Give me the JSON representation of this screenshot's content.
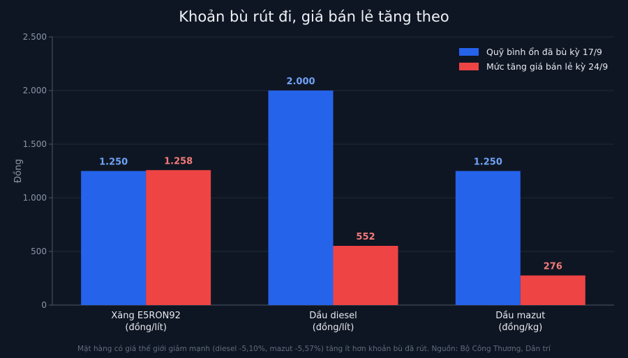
{
  "chart_data": {
    "type": "bar",
    "title": "Khoản bù rút đi, giá bán lẻ tăng theo",
    "ylabel": "Đồng",
    "xlabel": "",
    "ylim": [
      0,
      2500
    ],
    "yticks": [
      0,
      500,
      1000,
      1500,
      2000,
      2500
    ],
    "ytick_labels": [
      "0",
      "500",
      "1.000",
      "1.500",
      "2.000",
      "2.500"
    ],
    "categories": [
      [
        "Xăng E5RON92",
        "(đồng/lít)"
      ],
      [
        "Dầu diesel",
        "(đồng/lít)"
      ],
      [
        "Dầu mazut",
        "(đồng/kg)"
      ]
    ],
    "series": [
      {
        "name": "Quỹ bình ổn đã bù kỳ 17/9",
        "color": "#2563eb",
        "label_color": "#6fa3f7",
        "values": [
          1250,
          2000,
          1250
        ],
        "labels": [
          "1.250",
          "2.000",
          "1.250"
        ]
      },
      {
        "name": "Mức tăng giá bán lẻ kỳ 24/9",
        "color": "#ef4444",
        "label_color": "#f47a7a",
        "values": [
          1258,
          552,
          276
        ],
        "labels": [
          "1.258",
          "552",
          "276"
        ]
      }
    ],
    "grid": true,
    "legend_position": "top-right",
    "source_note": "Mặt hàng có giá thế giới giảm mạnh (diesel -5,10%, mazut -5,57%) tăng ít hơn khoản bù đã rút. Nguồn: Bộ Công Thương, Dân trí"
  }
}
